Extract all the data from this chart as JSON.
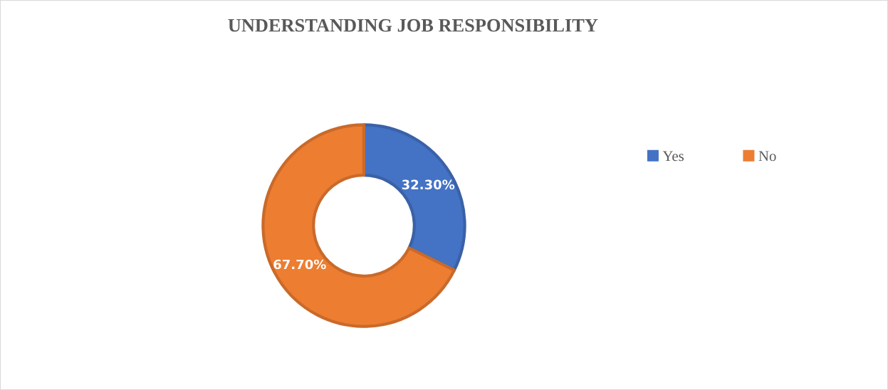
{
  "chart_data": {
    "type": "donut",
    "title": "UNDERSTANDING JOB RESPONSIBILITY",
    "categories": [
      "Yes",
      "No"
    ],
    "values": [
      32.3,
      67.7
    ],
    "colors": [
      "#4472c4",
      "#ed7d31"
    ],
    "value_labels": [
      "32.30%",
      "67.70%"
    ],
    "legend": "right"
  }
}
